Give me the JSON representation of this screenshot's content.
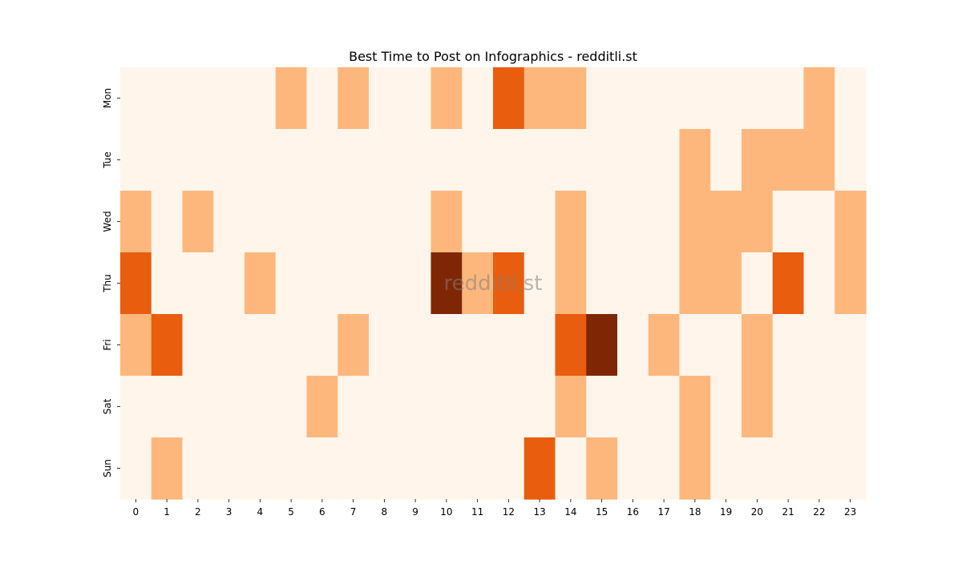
{
  "chart_data": {
    "type": "heatmap",
    "title": "Best Time to Post on Infographics - redditli.st",
    "xlabel": "",
    "ylabel": "",
    "x_categories": [
      "0",
      "1",
      "2",
      "3",
      "4",
      "5",
      "6",
      "7",
      "8",
      "9",
      "10",
      "11",
      "12",
      "13",
      "14",
      "15",
      "16",
      "17",
      "18",
      "19",
      "20",
      "21",
      "22",
      "23"
    ],
    "y_categories": [
      "Mon",
      "Tue",
      "Wed",
      "Thu",
      "Fri",
      "Sat",
      "Sun"
    ],
    "values": [
      [
        0,
        0,
        0,
        0,
        0,
        1,
        0,
        1,
        0,
        0,
        1,
        0,
        2,
        1,
        1,
        0,
        0,
        0,
        0,
        0,
        0,
        0,
        1,
        0
      ],
      [
        0,
        0,
        0,
        0,
        0,
        0,
        0,
        0,
        0,
        0,
        0,
        0,
        0,
        0,
        0,
        0,
        0,
        0,
        1,
        0,
        1,
        1,
        1,
        0
      ],
      [
        1,
        0,
        1,
        0,
        0,
        0,
        0,
        0,
        0,
        0,
        1,
        0,
        0,
        0,
        1,
        0,
        0,
        0,
        1,
        1,
        1,
        0,
        0,
        1
      ],
      [
        2,
        0,
        0,
        0,
        1,
        0,
        0,
        0,
        0,
        0,
        3,
        1,
        2,
        0,
        1,
        0,
        0,
        0,
        1,
        1,
        0,
        2,
        0,
        1
      ],
      [
        1,
        2,
        0,
        0,
        0,
        0,
        0,
        1,
        0,
        0,
        0,
        0,
        0,
        0,
        2,
        3,
        0,
        1,
        0,
        0,
        1,
        0,
        0,
        0
      ],
      [
        0,
        0,
        0,
        0,
        0,
        0,
        1,
        0,
        0,
        0,
        0,
        0,
        0,
        0,
        1,
        0,
        0,
        0,
        1,
        0,
        1,
        0,
        0,
        0
      ],
      [
        0,
        1,
        0,
        0,
        0,
        0,
        0,
        0,
        0,
        0,
        0,
        0,
        0,
        2,
        0,
        1,
        0,
        0,
        1,
        0,
        0,
        0,
        0,
        0
      ]
    ],
    "color_scale": [
      "#fff5eb",
      "#fdb77c",
      "#e85d0e",
      "#7f2704"
    ],
    "colormap": "Oranges",
    "watermark": "redditli.st"
  }
}
